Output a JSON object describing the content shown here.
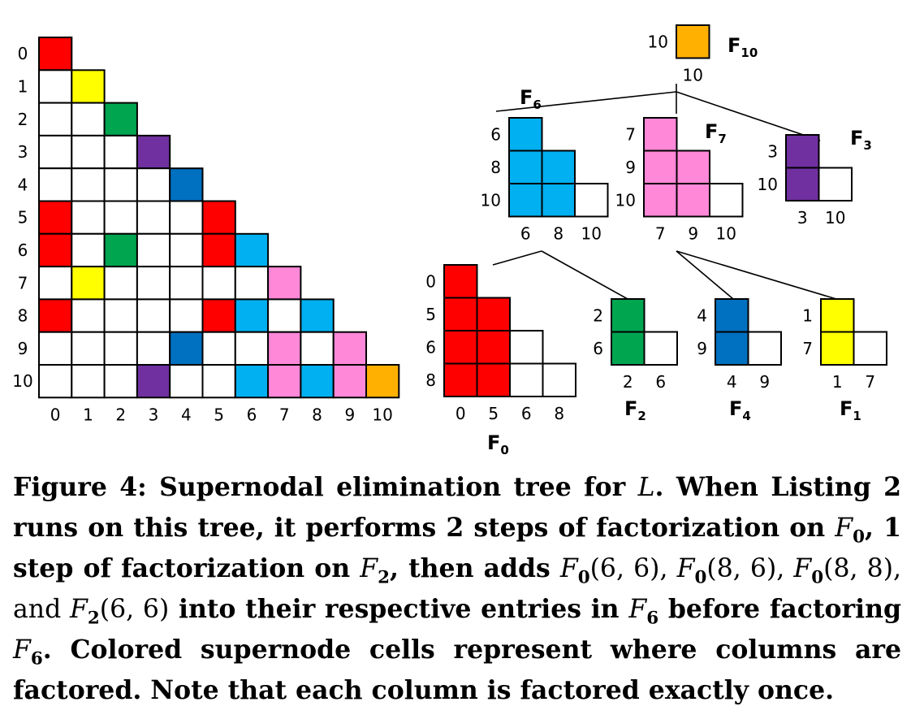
{
  "colors": {
    "red": "#ff0000",
    "yellow": "#ffff00",
    "green": "#00a550",
    "purple": "#7030a0",
    "blue": "#0070c0",
    "cyan": "#00b0f0",
    "pink": "#ff88d8",
    "orange": "#ffb000",
    "empty": "#ffffff"
  },
  "matrix": {
    "row_labels": [
      "0",
      "1",
      "2",
      "3",
      "4",
      "5",
      "6",
      "7",
      "8",
      "9",
      "10"
    ],
    "col_labels": [
      "0",
      "1",
      "2",
      "3",
      "4",
      "5",
      "6",
      "7",
      "8",
      "9",
      "10"
    ],
    "colored_cells": [
      {
        "r": 0,
        "c": 0,
        "color": "red"
      },
      {
        "r": 1,
        "c": 1,
        "color": "yellow"
      },
      {
        "r": 2,
        "c": 2,
        "color": "green"
      },
      {
        "r": 3,
        "c": 3,
        "color": "purple"
      },
      {
        "r": 4,
        "c": 4,
        "color": "blue"
      },
      {
        "r": 5,
        "c": 0,
        "color": "red"
      },
      {
        "r": 5,
        "c": 5,
        "color": "red"
      },
      {
        "r": 6,
        "c": 0,
        "color": "red"
      },
      {
        "r": 6,
        "c": 2,
        "color": "green"
      },
      {
        "r": 6,
        "c": 5,
        "color": "red"
      },
      {
        "r": 6,
        "c": 6,
        "color": "cyan"
      },
      {
        "r": 7,
        "c": 1,
        "color": "yellow"
      },
      {
        "r": 7,
        "c": 7,
        "color": "pink"
      },
      {
        "r": 8,
        "c": 0,
        "color": "red"
      },
      {
        "r": 8,
        "c": 5,
        "color": "red"
      },
      {
        "r": 8,
        "c": 6,
        "color": "cyan"
      },
      {
        "r": 8,
        "c": 8,
        "color": "cyan"
      },
      {
        "r": 9,
        "c": 4,
        "color": "blue"
      },
      {
        "r": 9,
        "c": 7,
        "color": "pink"
      },
      {
        "r": 9,
        "c": 9,
        "color": "pink"
      },
      {
        "r": 10,
        "c": 3,
        "color": "purple"
      },
      {
        "r": 10,
        "c": 6,
        "color": "cyan"
      },
      {
        "r": 10,
        "c": 7,
        "color": "pink"
      },
      {
        "r": 10,
        "c": 8,
        "color": "cyan"
      },
      {
        "r": 10,
        "c": 9,
        "color": "pink"
      },
      {
        "r": 10,
        "c": 10,
        "color": "orange"
      }
    ]
  },
  "supernodes": [
    {
      "id": "F10",
      "title": "F",
      "sub": "10",
      "rows": [
        "10"
      ],
      "cols": [
        "10"
      ],
      "ncolored": 1,
      "color": "orange"
    },
    {
      "id": "F6",
      "title": "F",
      "sub": "6",
      "rows": [
        "6",
        "8",
        "10"
      ],
      "cols": [
        "6",
        "8",
        "10"
      ],
      "ncolored": 2,
      "color": "cyan"
    },
    {
      "id": "F7",
      "title": "F",
      "sub": "7",
      "rows": [
        "7",
        "9",
        "10"
      ],
      "cols": [
        "7",
        "9",
        "10"
      ],
      "ncolored": 2,
      "color": "pink"
    },
    {
      "id": "F3",
      "title": "F",
      "sub": "3",
      "rows": [
        "3",
        "10"
      ],
      "cols": [
        "3",
        "10"
      ],
      "ncolored": 1,
      "color": "purple"
    },
    {
      "id": "F0",
      "title": "F",
      "sub": "0",
      "rows": [
        "0",
        "5",
        "6",
        "8"
      ],
      "cols": [
        "0",
        "5",
        "6",
        "8"
      ],
      "ncolored": 2,
      "color": "red"
    },
    {
      "id": "F2",
      "title": "F",
      "sub": "2",
      "rows": [
        "2",
        "6"
      ],
      "cols": [
        "2",
        "6"
      ],
      "ncolored": 1,
      "color": "green"
    },
    {
      "id": "F4",
      "title": "F",
      "sub": "4",
      "rows": [
        "4",
        "9"
      ],
      "cols": [
        "4",
        "9"
      ],
      "ncolored": 1,
      "color": "blue"
    },
    {
      "id": "F1",
      "title": "F",
      "sub": "1",
      "rows": [
        "1",
        "7"
      ],
      "cols": [
        "1",
        "7"
      ],
      "ncolored": 1,
      "color": "yellow"
    }
  ],
  "tree_edges": [
    [
      "F10",
      "F6"
    ],
    [
      "F10",
      "F7"
    ],
    [
      "F10",
      "F3"
    ],
    [
      "F6",
      "F0"
    ],
    [
      "F6",
      "F2"
    ],
    [
      "F7",
      "F4"
    ],
    [
      "F7",
      "F1"
    ]
  ],
  "caption": {
    "t01": "Figure 4: Supernodal elimination tree for ",
    "t02": "L",
    "t03": ". When Listing 2 runs on this tree, it performs 2 steps of factorization on ",
    "t04": "F",
    "t05": "0",
    "t06": ", 1 step of factorization on ",
    "t07": "F",
    "t08": "2",
    "t09": ", then adds ",
    "t10": "F",
    "t11": "0",
    "t12": "(6, 6), ",
    "t13": "F",
    "t14": "0",
    "t15": "(8, 6), ",
    "t16": "F",
    "t17": "0",
    "t18": "(8, 8), and ",
    "t19": "F",
    "t20": "2",
    "t21": "(6, 6)",
    "t22": " into their respective entries in ",
    "t23": "F",
    "t24": "6",
    "t25": " before factoring ",
    "t26": "F",
    "t27": "6",
    "t28": ". Colored supernode cells represent where columns are factored. Note that each column is factored exactly once."
  }
}
